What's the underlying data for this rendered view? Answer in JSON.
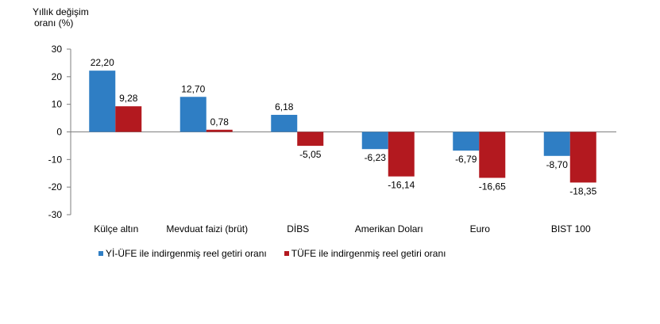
{
  "chart_data": {
    "type": "bar",
    "ylabel_lines": [
      "Yıllık değişim",
      "oranı (%)"
    ],
    "categories": [
      "Külçe altın",
      "Mevduat faizi (brüt)",
      "DİBS",
      "Amerikan Doları",
      "Euro",
      "BIST 100"
    ],
    "series": [
      {
        "name": "Yİ-ÜFE ile indirgenmiş reel getiri oranı",
        "color": "#2f7ec4",
        "values": [
          22.2,
          12.7,
          6.18,
          -6.23,
          -6.79,
          -8.7
        ],
        "labels": [
          "22,20",
          "12,70",
          "6,18",
          "-6,23",
          "-6,79",
          "-8,70"
        ]
      },
      {
        "name": "TÜFE ile indirgenmiş reel getiri oranı",
        "color": "#b3191f",
        "values": [
          9.28,
          0.78,
          -5.05,
          -16.14,
          -16.65,
          -18.35
        ],
        "labels": [
          "9,28",
          "0,78",
          "-5,05",
          "-16,14",
          "-16,65",
          "-18,35"
        ]
      }
    ],
    "ylim": [
      -30,
      30
    ],
    "yticks": [
      30,
      20,
      10,
      0,
      -10,
      -20,
      -30
    ],
    "ytick_labels": [
      "30",
      "20",
      "10",
      "0",
      "-10",
      "-20",
      "-30"
    ],
    "grid": false,
    "legend_position": "bottom"
  }
}
